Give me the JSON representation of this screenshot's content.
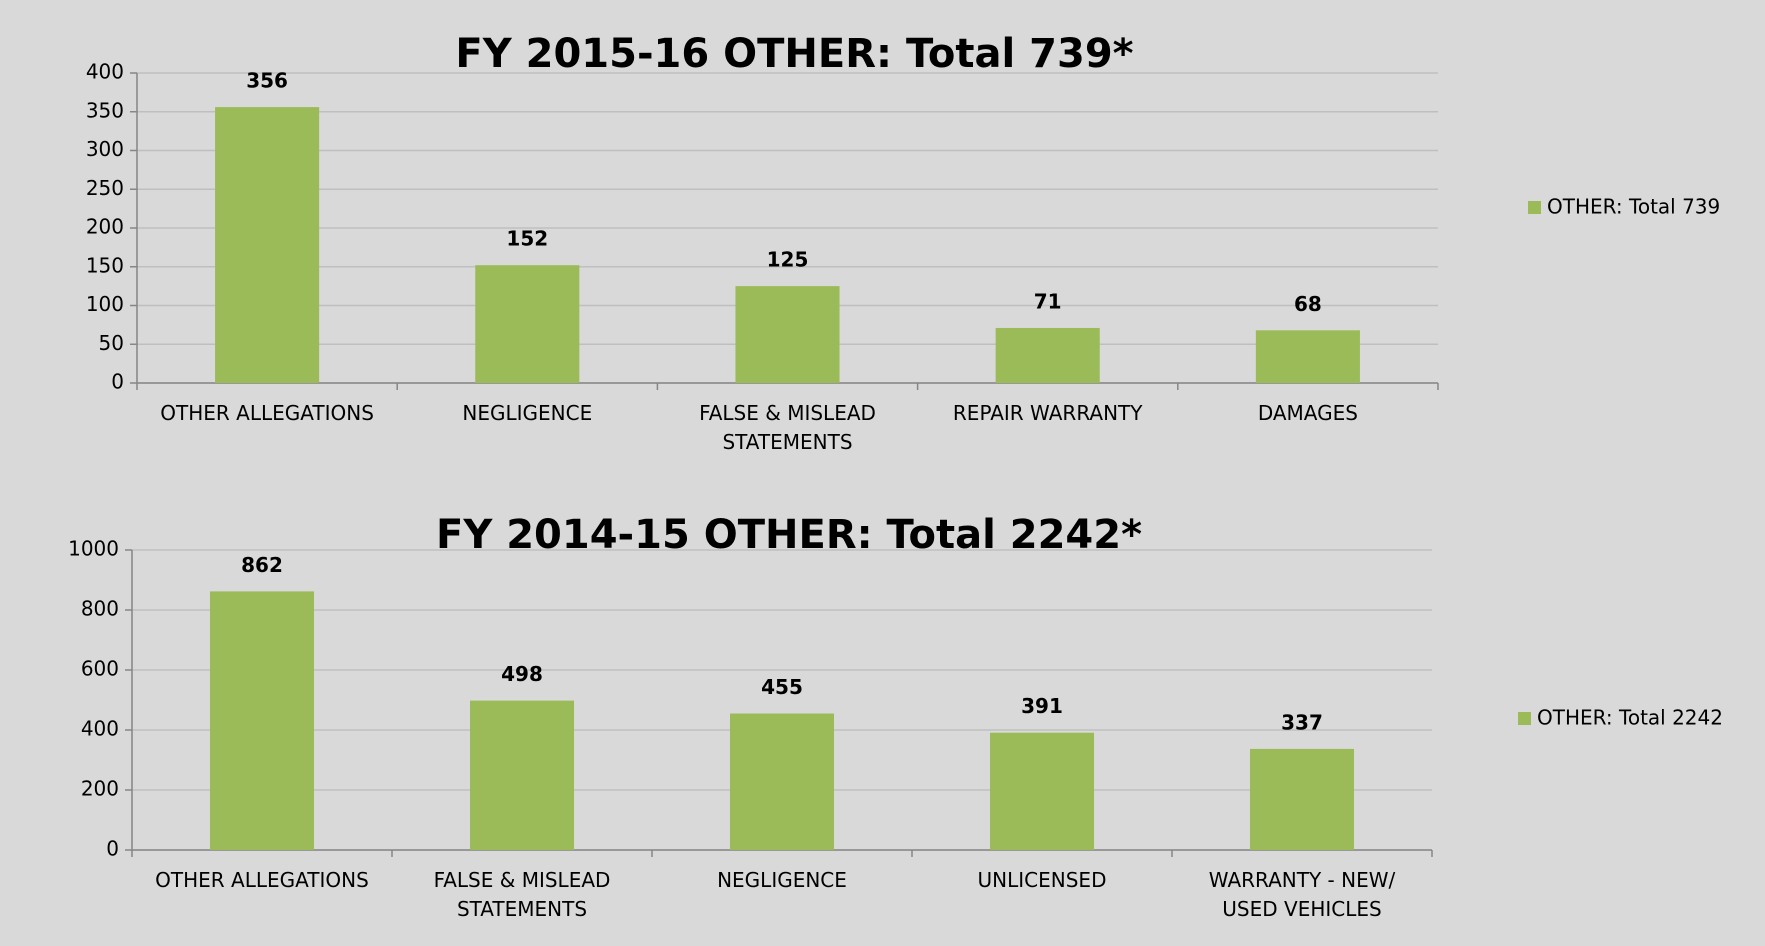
{
  "chart_data": [
    {
      "type": "bar",
      "title": "FY 2015-16 OTHER: Total 739*",
      "categories": [
        "OTHER ALLEGATIONS",
        "NEGLIGENCE",
        "FALSE & MISLEAD STATEMENTS",
        "REPAIR WARRANTY",
        "DAMAGES"
      ],
      "series": [
        {
          "name": "OTHER: Total 739",
          "color": "#9bbb59",
          "values": [
            356,
            152,
            125,
            71,
            68
          ]
        }
      ],
      "ylim": [
        0,
        400
      ],
      "yticks": [
        0,
        50,
        100,
        150,
        200,
        250,
        300,
        350,
        400
      ],
      "grid": true,
      "legend": "right"
    },
    {
      "type": "bar",
      "title": "FY 2014-15 OTHER: Total 2242*",
      "categories": [
        "OTHER ALLEGATIONS",
        "FALSE & MISLEAD STATEMENTS",
        "NEGLIGENCE",
        "UNLICENSED",
        "WARRANTY - NEW/ USED VEHICLES"
      ],
      "series": [
        {
          "name": "OTHER: Total 2242",
          "color": "#9bbb59",
          "values": [
            862,
            498,
            455,
            391,
            337
          ]
        }
      ],
      "ylim": [
        0,
        1000
      ],
      "yticks": [
        0,
        200,
        400,
        600,
        800,
        1000
      ],
      "grid": true,
      "legend": "right"
    }
  ]
}
